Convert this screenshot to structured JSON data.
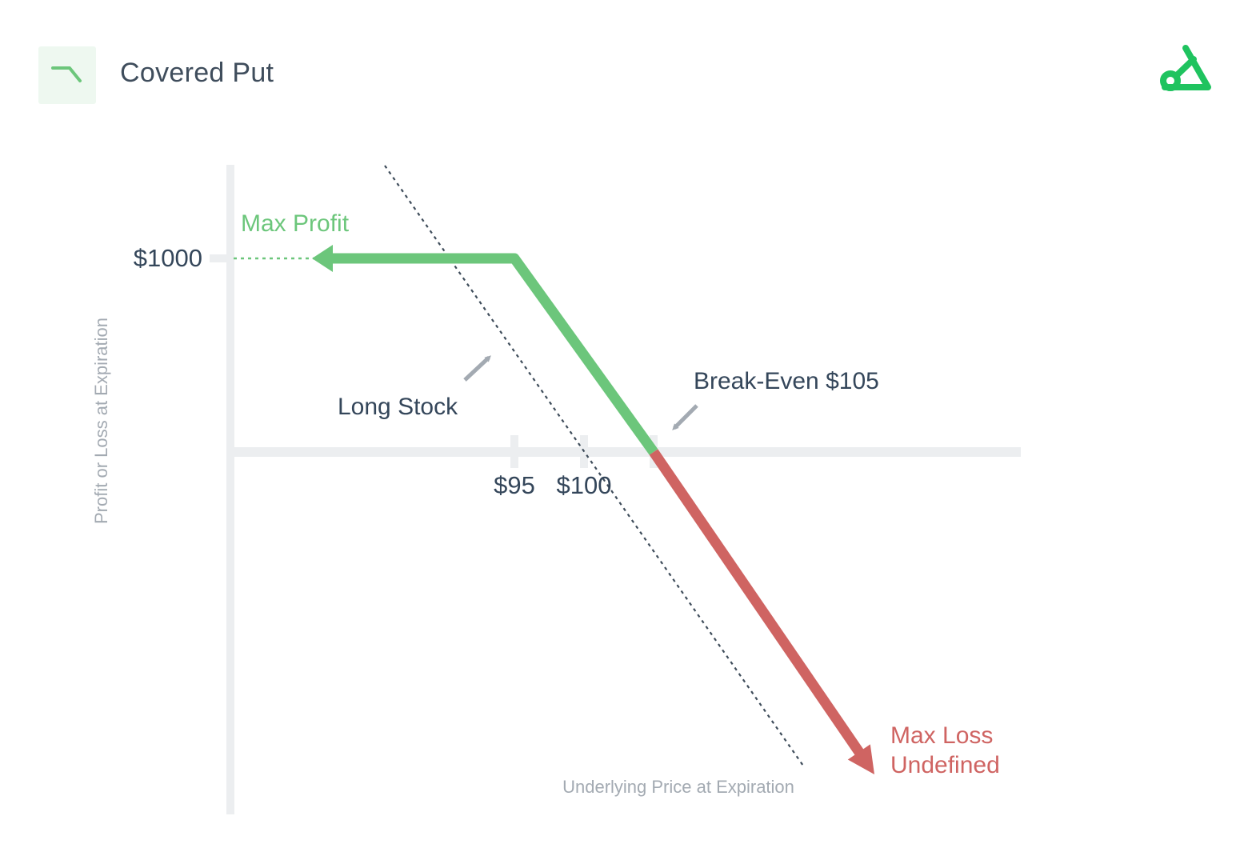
{
  "header": {
    "title": "Covered Put",
    "strategy_icon": "descending-payoff-icon",
    "brand_logo": "brand-logo-icon"
  },
  "colors": {
    "profit": "#6cc67b",
    "loss": "#cf6462",
    "text_dark": "#34465a",
    "text_muted": "#a3aab2",
    "axis": "#eceef0",
    "arrow_gray": "#a3aab2"
  },
  "chart_data": {
    "type": "line",
    "xlabel": "Underlying Price at Expiration",
    "ylabel": "Profit or Loss at Expiration",
    "x_ticks": [
      "$95",
      "$100"
    ],
    "x_tick_values": [
      95,
      100
    ],
    "y_ticks": [
      "$1000"
    ],
    "y_tick_values": [
      1000
    ],
    "series": [
      {
        "name": "",
        "segment": "profit",
        "x": [
          95,
          105
        ],
        "y": [
          1000,
          0
        ]
      },
      {
        "name": "",
        "segment": "loss",
        "x": [
          105,
          120
        ],
        "y": [
          0,
          -1500
        ]
      },
      {
        "name": "Long Stock",
        "style": "dotted",
        "x": [
          85,
          120
        ],
        "y": [
          1500,
          -2000
        ]
      }
    ],
    "annotations": {
      "max_profit": "Max Profit",
      "long_stock": "Long Stock",
      "break_even": "Break-Even $105",
      "max_loss_line1": "Max Loss",
      "max_loss_line2": "Undefined"
    }
  }
}
